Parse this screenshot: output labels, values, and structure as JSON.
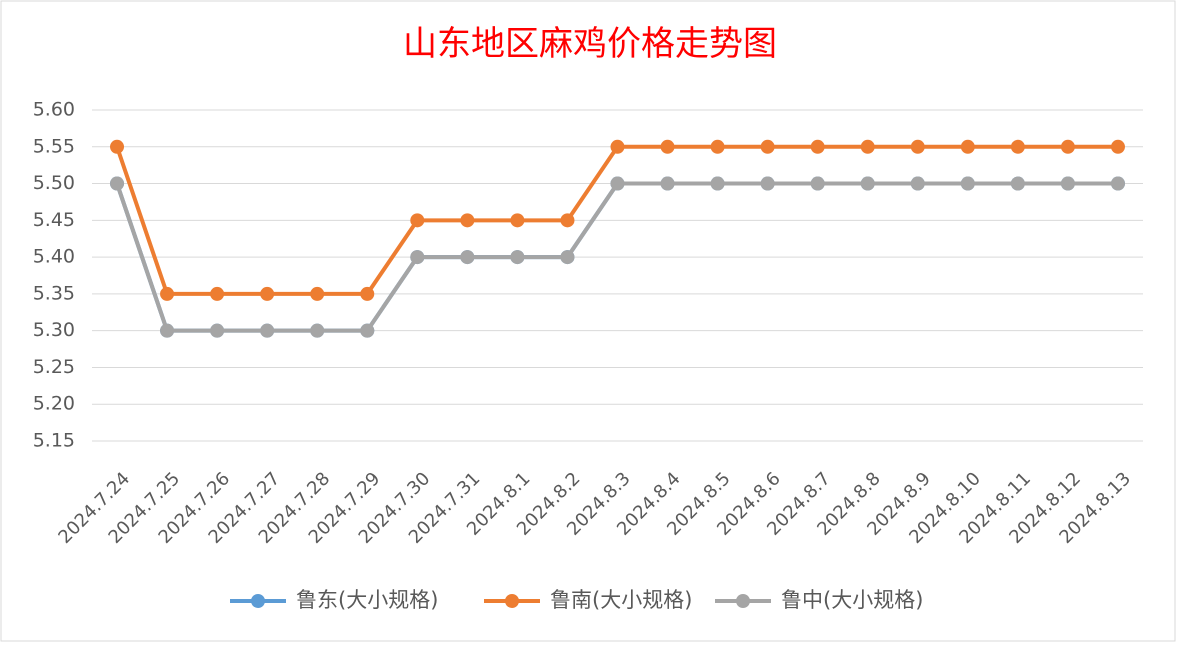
{
  "chart_data": {
    "type": "line",
    "title": "山东地区麻鸡价格走势图",
    "categories": [
      "2024.7.24",
      "2024.7.25",
      "2024.7.26",
      "2024.7.27",
      "2024.7.28",
      "2024.7.29",
      "2024.7.30",
      "2024.7.31",
      "2024.8.1",
      "2024.8.2",
      "2024.8.3",
      "2024.8.4",
      "2024.8.5",
      "2024.8.6",
      "2024.8.7",
      "2024.8.8",
      "2024.8.9",
      "2024.8.10",
      "2024.8.11",
      "2024.8.12",
      "2024.8.13"
    ],
    "series": [
      {
        "name": "鲁东(大小规格)",
        "color": "#5b9bd5",
        "values": [
          5.5,
          5.3,
          5.3,
          5.3,
          5.3,
          5.3,
          5.4,
          5.4,
          5.4,
          5.4,
          5.5,
          5.5,
          5.5,
          5.5,
          5.5,
          5.5,
          5.5,
          5.5,
          5.5,
          5.5,
          5.5
        ]
      },
      {
        "name": "鲁南(大小规格)",
        "color": "#ed7d31",
        "values": [
          5.55,
          5.35,
          5.35,
          5.35,
          5.35,
          5.35,
          5.45,
          5.45,
          5.45,
          5.45,
          5.55,
          5.55,
          5.55,
          5.55,
          5.55,
          5.55,
          5.55,
          5.55,
          5.55,
          5.55,
          5.55
        ]
      },
      {
        "name": "鲁中(大小规格)",
        "color": "#a5a5a5",
        "values": [
          5.5,
          5.3,
          5.3,
          5.3,
          5.3,
          5.3,
          5.4,
          5.4,
          5.4,
          5.4,
          5.5,
          5.5,
          5.5,
          5.5,
          5.5,
          5.5,
          5.5,
          5.5,
          5.5,
          5.5,
          5.5
        ]
      }
    ],
    "ylim": [
      5.15,
      5.6
    ],
    "yticks": [
      5.15,
      {
        "value": 5.2,
        "label": "5.20"
      },
      5.25,
      {
        "value": 5.3,
        "label": "5.30"
      },
      5.35,
      {
        "value": 5.4,
        "label": "5.40"
      },
      5.45,
      {
        "value": 5.5,
        "label": "5.50"
      },
      5.55,
      {
        "value": 5.6,
        "label": "5.60"
      }
    ],
    "grid": true,
    "legend": "bottom"
  }
}
